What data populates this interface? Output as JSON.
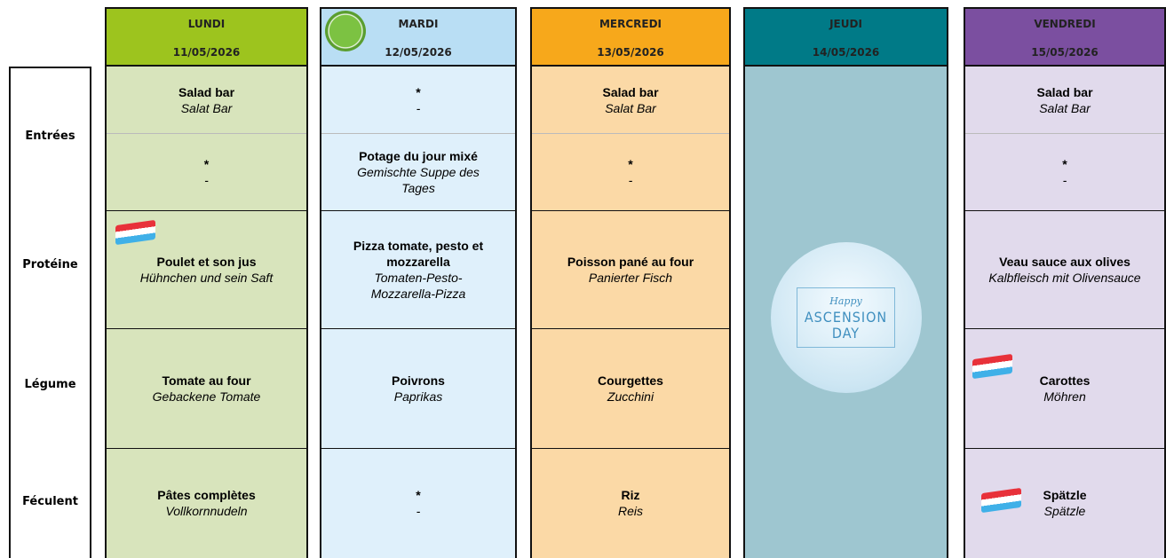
{
  "row_labels": [
    "Entrées",
    "Protéine",
    "Légume",
    "Féculent"
  ],
  "days": [
    {
      "name": "LUNDI",
      "date": "11/05/2026",
      "meals": [
        {
          "fr": "Salad bar",
          "de": "Salat Bar"
        },
        {
          "fr": "*",
          "de": "-"
        },
        {
          "fr": "Poulet et son jus",
          "de": "Hühnchen und sein Saft",
          "flag": true
        },
        {
          "fr": "Tomate au four",
          "de": "Gebackene Tomate"
        },
        {
          "fr": "Pâtes complètes",
          "de": "Vollkornnudeln"
        }
      ]
    },
    {
      "name": "MARDI",
      "date": "12/05/2026",
      "leaf": true,
      "meals": [
        {
          "fr": "*",
          "de": "-"
        },
        {
          "fr": "Potage du jour mixé",
          "de": "Gemischte Suppe des Tages"
        },
        {
          "fr": "Pizza tomate, pesto et mozzarella",
          "de": "Tomaten-Pesto-Mozzarella-Pizza"
        },
        {
          "fr": "Poivrons",
          "de": "Paprikas"
        },
        {
          "fr": "*",
          "de": "-"
        }
      ]
    },
    {
      "name": "MERCREDI",
      "date": "13/05/2026",
      "meals": [
        {
          "fr": "Salad bar",
          "de": "Salat Bar"
        },
        {
          "fr": "*",
          "de": "-"
        },
        {
          "fr": "Poisson pané au four",
          "de": "Panierter Fisch"
        },
        {
          "fr": "Courgettes",
          "de": "Zucchini"
        },
        {
          "fr": "Riz",
          "de": "Reis"
        }
      ]
    },
    {
      "name": "JEUDI",
      "date": "14/05/2026",
      "image_text": [
        "Happy",
        "ASCENSION",
        "DAY"
      ]
    },
    {
      "name": "VENDREDI",
      "date": "15/05/2026",
      "meals": [
        {
          "fr": "Salad bar",
          "de": "Salat Bar"
        },
        {
          "fr": "*",
          "de": "-"
        },
        {
          "fr": "Veau sauce aux olives",
          "de": "Kalbfleisch mit Olivensauce"
        },
        {
          "fr": "Carottes",
          "de": "Möhren",
          "flag": true
        },
        {
          "fr": "Spätzle",
          "de": "Spätzle",
          "flag": true
        }
      ]
    }
  ]
}
